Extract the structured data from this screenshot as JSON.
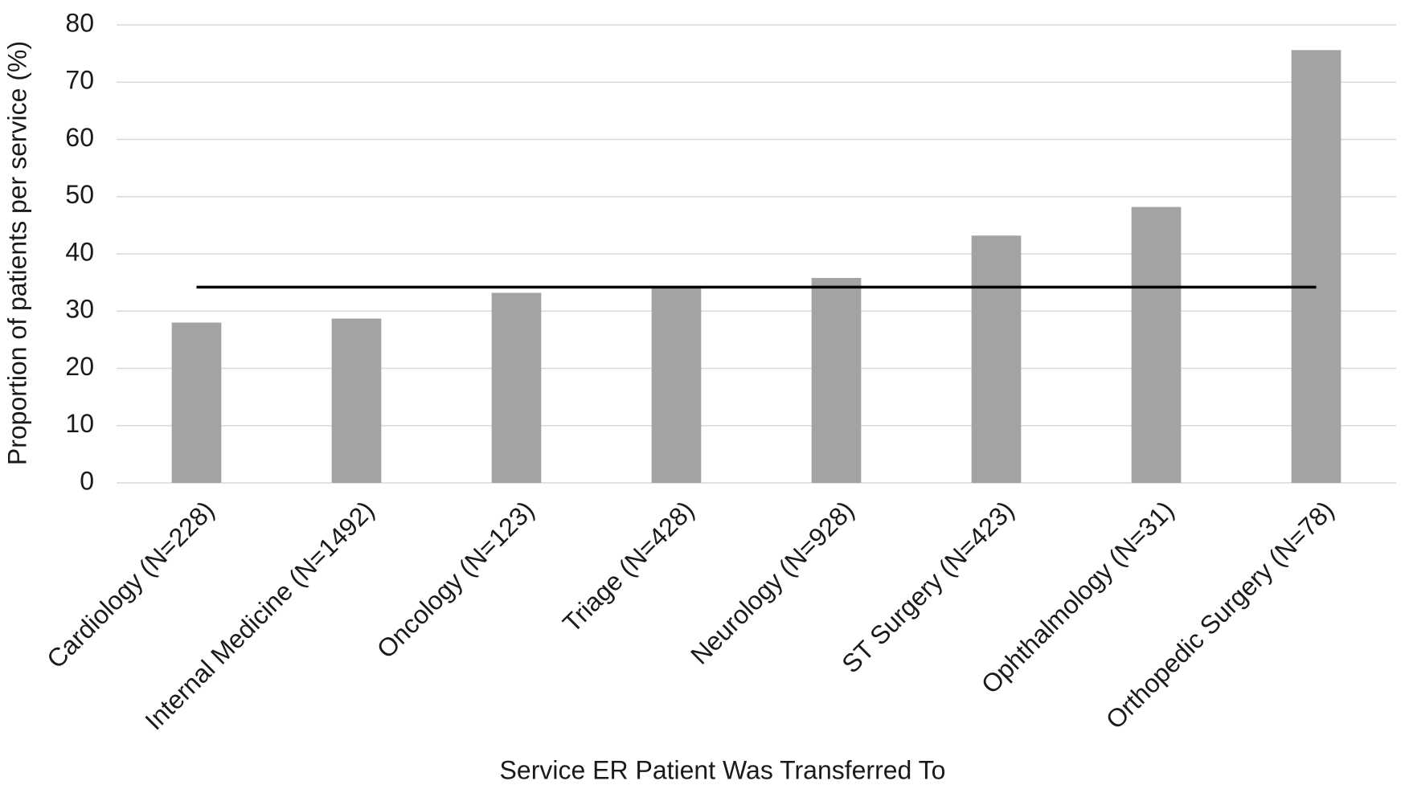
{
  "chart_data": {
    "type": "bar",
    "x_label": "Service ER Patient Was Transferred To",
    "y_label": "Proportion of patients per service (%)",
    "categories": [
      "Cardiology (N=228)",
      "Internal Medicine (N=1492)",
      "Oncology (N=123)",
      "Triage (N=428)",
      "Neurology (N=928)",
      "ST Surgery (N=423)",
      "Ophthalmology (N=31)",
      "Orthopedic Surgery (N=78)"
    ],
    "values": [
      28,
      28.7,
      33.2,
      34,
      35.8,
      43.2,
      48.2,
      75.6
    ],
    "color": "#a3a3a3",
    "reference_line": 34.2,
    "reference_color": "#000000",
    "ylim": [
      0,
      80
    ],
    "yticks": [
      0,
      10,
      20,
      30,
      40,
      50,
      60,
      70,
      80
    ],
    "grid": true
  }
}
